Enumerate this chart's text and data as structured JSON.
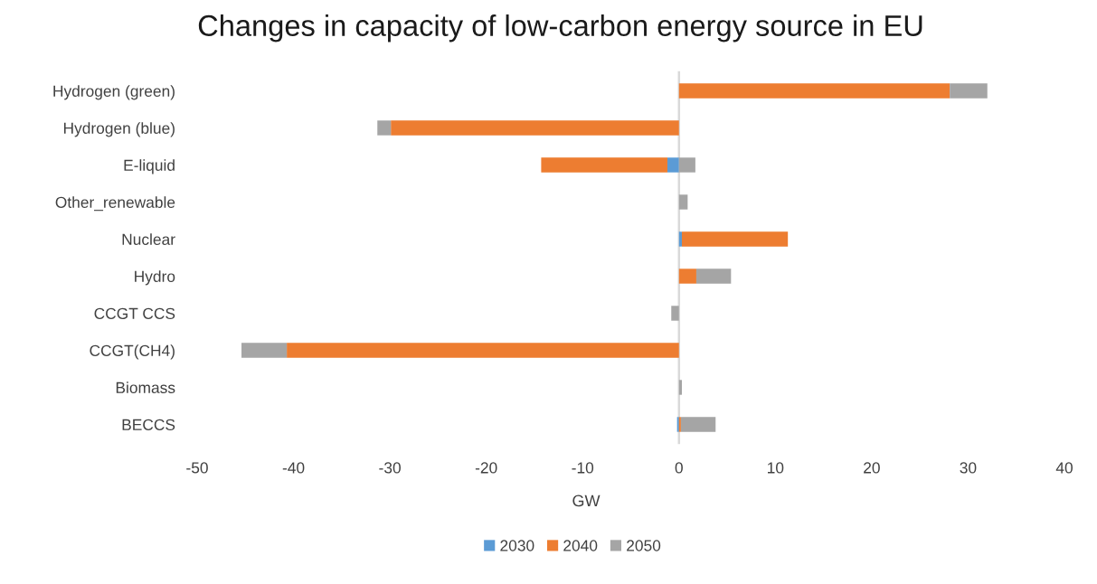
{
  "chart_data": {
    "type": "bar",
    "orientation": "horizontal",
    "stacked": true,
    "title": "Changes in capacity of low-carbon energy source in EU",
    "xlabel": "GW",
    "categories": [
      "Hydrogen (green)",
      "Hydrogen (blue)",
      "E-liquid",
      "Other_renewable",
      "Nuclear",
      "Hydro",
      "CCGT CCS",
      "CCGT(CH4)",
      "Biomass",
      "BECCS"
    ],
    "series": [
      {
        "name": "2030",
        "color": "#5b9bd5",
        "values": [
          null,
          null,
          -1.2,
          null,
          0.3,
          null,
          null,
          null,
          null,
          -0.2
        ]
      },
      {
        "name": "2040",
        "color": "#ed7d31",
        "values": [
          28.1,
          -29.9,
          -13.1,
          null,
          11.0,
          1.8,
          null,
          -40.7,
          null,
          0.2
        ]
      },
      {
        "name": "2050",
        "color": "#a5a5a5",
        "values": [
          3.9,
          -1.4,
          1.7,
          0.9,
          null,
          3.6,
          -0.8,
          -4.7,
          0.3,
          3.6
        ]
      }
    ],
    "xlim": [
      -50,
      40
    ],
    "xticks": [
      -50,
      -40,
      -30,
      -20,
      -10,
      0,
      10,
      20,
      30,
      40
    ],
    "legend": "bottom"
  }
}
